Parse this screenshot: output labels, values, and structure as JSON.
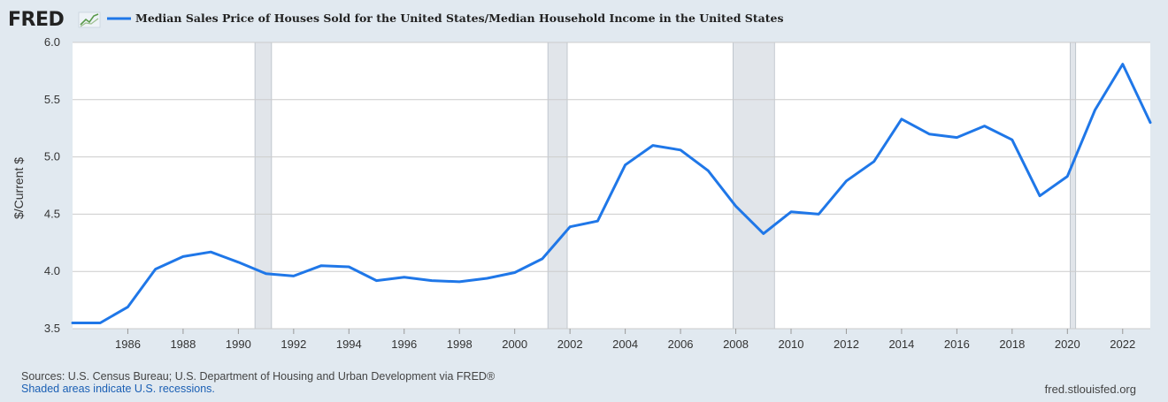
{
  "brand": {
    "logo_text": "FRED",
    "icon": "chart-line-icon"
  },
  "colors": {
    "background": "#e1e9f0",
    "plot_background": "#ffffff",
    "series": "#1f77e8",
    "recession": "#e1e5ea",
    "grid": "#cccccc"
  },
  "chart_data": {
    "type": "line",
    "title": "",
    "xlabel": "",
    "ylabel": "$/Current $",
    "ylim": [
      3.5,
      6.0
    ],
    "xlim": [
      1984,
      2023
    ],
    "grid": true,
    "legend_position": "top-left",
    "yticks": [
      "3.5",
      "4.0",
      "4.5",
      "5.0",
      "5.5",
      "6.0"
    ],
    "xticks": [
      "1986",
      "1988",
      "1990",
      "1992",
      "1994",
      "1996",
      "1998",
      "2000",
      "2002",
      "2004",
      "2006",
      "2008",
      "2010",
      "2012",
      "2014",
      "2016",
      "2018",
      "2020",
      "2022"
    ],
    "recessions": [
      [
        1990.6,
        1991.2
      ],
      [
        2001.2,
        2001.9
      ],
      [
        2007.9,
        2009.4
      ],
      [
        2020.1,
        2020.3
      ]
    ],
    "series": [
      {
        "name": "Median Sales Price of Houses Sold for the United States/Median Household Income in the United States",
        "x": [
          1984,
          1985,
          1986,
          1987,
          1988,
          1989,
          1990,
          1991,
          1992,
          1993,
          1994,
          1995,
          1996,
          1997,
          1998,
          1999,
          2000,
          2001,
          2002,
          2003,
          2004,
          2005,
          2006,
          2007,
          2008,
          2009,
          2010,
          2011,
          2012,
          2013,
          2014,
          2015,
          2016,
          2017,
          2018,
          2019,
          2020,
          2021,
          2022,
          2023
        ],
        "values": [
          3.55,
          3.55,
          3.69,
          4.02,
          4.13,
          4.17,
          4.08,
          3.98,
          3.96,
          4.05,
          4.04,
          3.92,
          3.95,
          3.92,
          3.91,
          3.94,
          3.99,
          4.11,
          4.39,
          4.44,
          4.93,
          5.1,
          5.06,
          4.88,
          4.57,
          4.33,
          4.52,
          4.5,
          4.79,
          4.96,
          5.33,
          5.2,
          5.17,
          5.27,
          5.15,
          4.66,
          4.83,
          5.41,
          5.81,
          5.3
        ]
      }
    ]
  },
  "footer": {
    "sources": "Sources: U.S. Census Bureau; U.S. Department of Housing and Urban Development via FRED®",
    "note": "Shaded areas indicate U.S. recessions.",
    "url": "fred.stlouisfed.org"
  }
}
